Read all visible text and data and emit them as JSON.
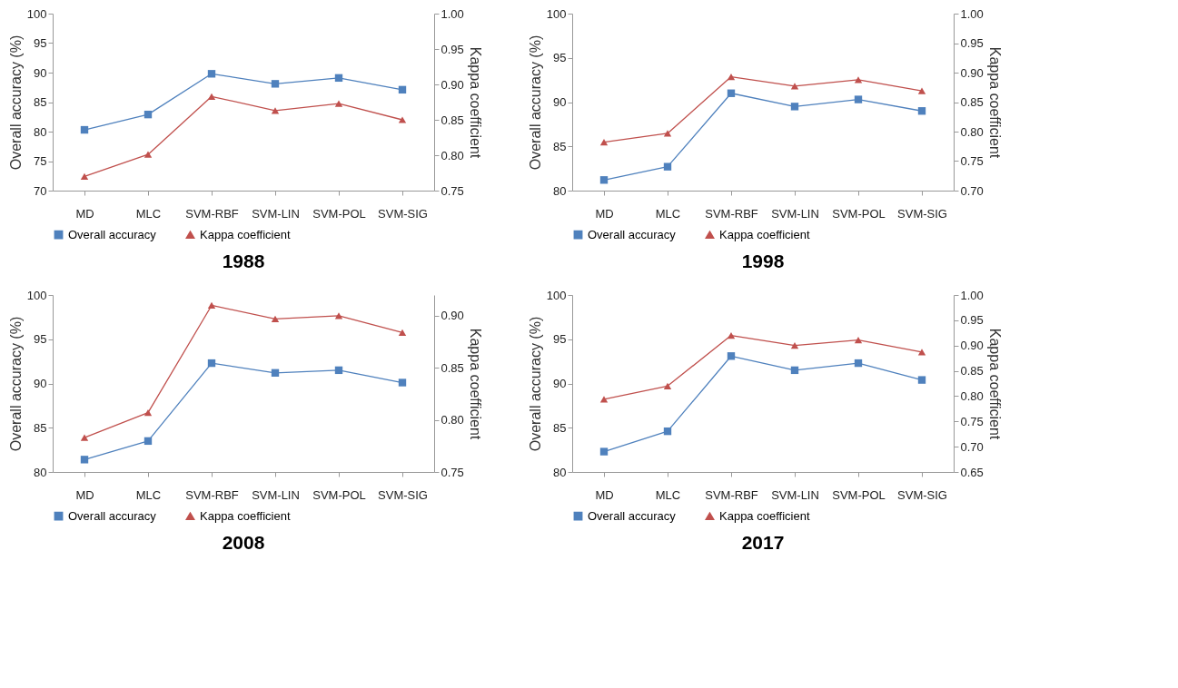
{
  "chart_data": [
    {
      "type": "line",
      "title": "1988",
      "categories": [
        "MD",
        "MLC",
        "SVM-RBF",
        "SVM-LIN",
        "SVM-POL",
        "SVM-SIG"
      ],
      "ylabel": "Overall accuracy (%)",
      "y2label": "Kappa coefficient",
      "ylim": [
        70,
        100
      ],
      "yticks": [
        70,
        75,
        80,
        85,
        90,
        95,
        100
      ],
      "y2lim": [
        0.75,
        1.0
      ],
      "y2ticks": [
        0.75,
        {
          "value": 0.8,
          "label": "0.80"
        },
        0.85,
        {
          "value": 0.9,
          "label": "0.90"
        },
        0.95,
        {
          "value": 1.0,
          "label": "1.00"
        }
      ],
      "legend": "bottom",
      "series": [
        {
          "name": "Overall accuracy",
          "color": "#4f81bd",
          "marker": "square",
          "values": [
            80.3,
            82.9,
            89.8,
            88.1,
            89.1,
            87.1
          ]
        },
        {
          "name": "Kappa coefficient",
          "color": "#c0504d",
          "marker": "triangle",
          "axis": "y2",
          "values": [
            0.77,
            0.801,
            0.883,
            0.863,
            0.873,
            0.85
          ]
        }
      ]
    },
    {
      "type": "line",
      "title": "1998",
      "categories": [
        "MD",
        "MLC",
        "SVM-RBF",
        "SVM-LIN",
        "SVM-POL",
        "SVM-SIG"
      ],
      "ylabel": "Overall accuracy (%)",
      "y2label": "Kappa coefficient",
      "ylim": [
        80,
        100
      ],
      "yticks": [
        80,
        85,
        90,
        95,
        100
      ],
      "y2lim": [
        0.7,
        1.0
      ],
      "y2ticks": [
        {
          "value": 0.7,
          "label": "0.70"
        },
        0.75,
        {
          "value": 0.8,
          "label": "0.80"
        },
        0.85,
        {
          "value": 0.9,
          "label": "0.90"
        },
        0.95,
        {
          "value": 1.0,
          "label": "1.00"
        }
      ],
      "legend": "bottom",
      "series": [
        {
          "name": "Overall accuracy",
          "color": "#4f81bd",
          "marker": "square",
          "values": [
            81.2,
            82.7,
            91.0,
            89.5,
            90.3,
            89.0
          ]
        },
        {
          "name": "Kappa coefficient",
          "color": "#c0504d",
          "marker": "triangle",
          "axis": "y2",
          "values": [
            0.782,
            0.797,
            0.893,
            0.877,
            0.888,
            0.869
          ]
        }
      ]
    },
    {
      "type": "line",
      "title": "2008",
      "categories": [
        "MD",
        "MLC",
        "SVM-RBF",
        "SVM-LIN",
        "SVM-POL",
        "SVM-SIG"
      ],
      "ylabel": "Overall accuracy (%)",
      "y2label": "Kappa coefficient",
      "ylim": [
        80,
        100
      ],
      "yticks": [
        80,
        85,
        90,
        95,
        100
      ],
      "y2lim": [
        0.75,
        0.92
      ],
      "y2ticks": [
        0.75,
        {
          "value": 0.8,
          "label": "0.80"
        },
        0.85,
        {
          "value": 0.9,
          "label": "0.90"
        }
      ],
      "legend": "bottom",
      "series": [
        {
          "name": "Overall accuracy",
          "color": "#4f81bd",
          "marker": "square",
          "values": [
            81.4,
            83.5,
            92.3,
            91.2,
            91.5,
            90.1
          ]
        },
        {
          "name": "Kappa coefficient",
          "color": "#c0504d",
          "marker": "triangle",
          "axis": "y2",
          "values": [
            0.783,
            0.807,
            0.91,
            0.897,
            0.9,
            0.884
          ]
        }
      ]
    },
    {
      "type": "line",
      "title": "2017",
      "categories": [
        "MD",
        "MLC",
        "SVM-RBF",
        "SVM-LIN",
        "SVM-POL",
        "SVM-SIG"
      ],
      "ylabel": "Overall accuracy (%)",
      "y2label": "Kappa coefficient",
      "ylim": [
        80,
        100
      ],
      "yticks": [
        80,
        85,
        90,
        95,
        100
      ],
      "y2lim": [
        0.65,
        1.0
      ],
      "y2ticks": [
        0.65,
        {
          "value": 0.7,
          "label": "0.70"
        },
        0.75,
        {
          "value": 0.8,
          "label": "0.80"
        },
        0.85,
        {
          "value": 0.9,
          "label": "0.90"
        },
        0.95,
        {
          "value": 1.0,
          "label": "1.00"
        }
      ],
      "legend": "bottom",
      "series": [
        {
          "name": "Overall accuracy",
          "color": "#4f81bd",
          "marker": "square",
          "values": [
            82.3,
            84.6,
            93.1,
            91.5,
            92.3,
            90.4
          ]
        },
        {
          "name": "Kappa coefficient",
          "color": "#c0504d",
          "marker": "triangle",
          "axis": "y2",
          "values": [
            0.794,
            0.82,
            0.92,
            0.9,
            0.911,
            0.887
          ]
        }
      ]
    }
  ]
}
